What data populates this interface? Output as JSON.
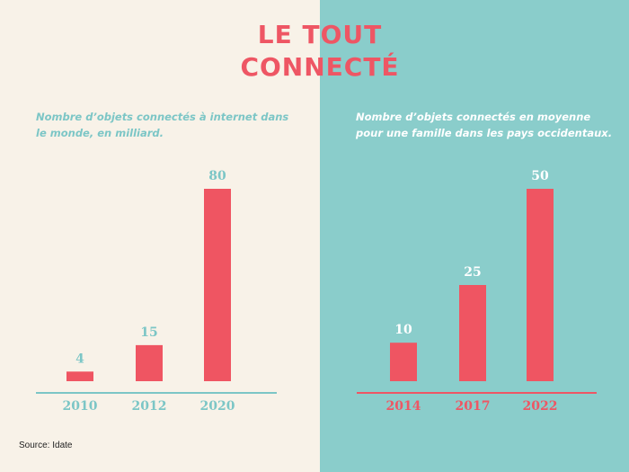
{
  "title_line1": "LE TOUT",
  "title_line2": "CONNECTÉ",
  "source": "Source: Idate",
  "colors": {
    "bar": "#ef5562",
    "left_bg": "#f8f2e8",
    "right_bg": "#8acdcb",
    "teal_text": "#7cc6c6",
    "red_text": "#ee5664"
  },
  "chart_data": [
    {
      "type": "bar",
      "title": "Nombre d’objets connectés à internet dans le monde, en milliard.",
      "categories": [
        "2010",
        "2012",
        "2020"
      ],
      "values": [
        4,
        15,
        80
      ],
      "ylim": [
        0,
        80
      ]
    },
    {
      "type": "bar",
      "title": "Nombre d’objets connectés en moyenne pour une famille dans les pays occidentaux.",
      "categories": [
        "2014",
        "2017",
        "2022"
      ],
      "values": [
        10,
        25,
        50
      ],
      "ylim": [
        0,
        50
      ]
    }
  ]
}
